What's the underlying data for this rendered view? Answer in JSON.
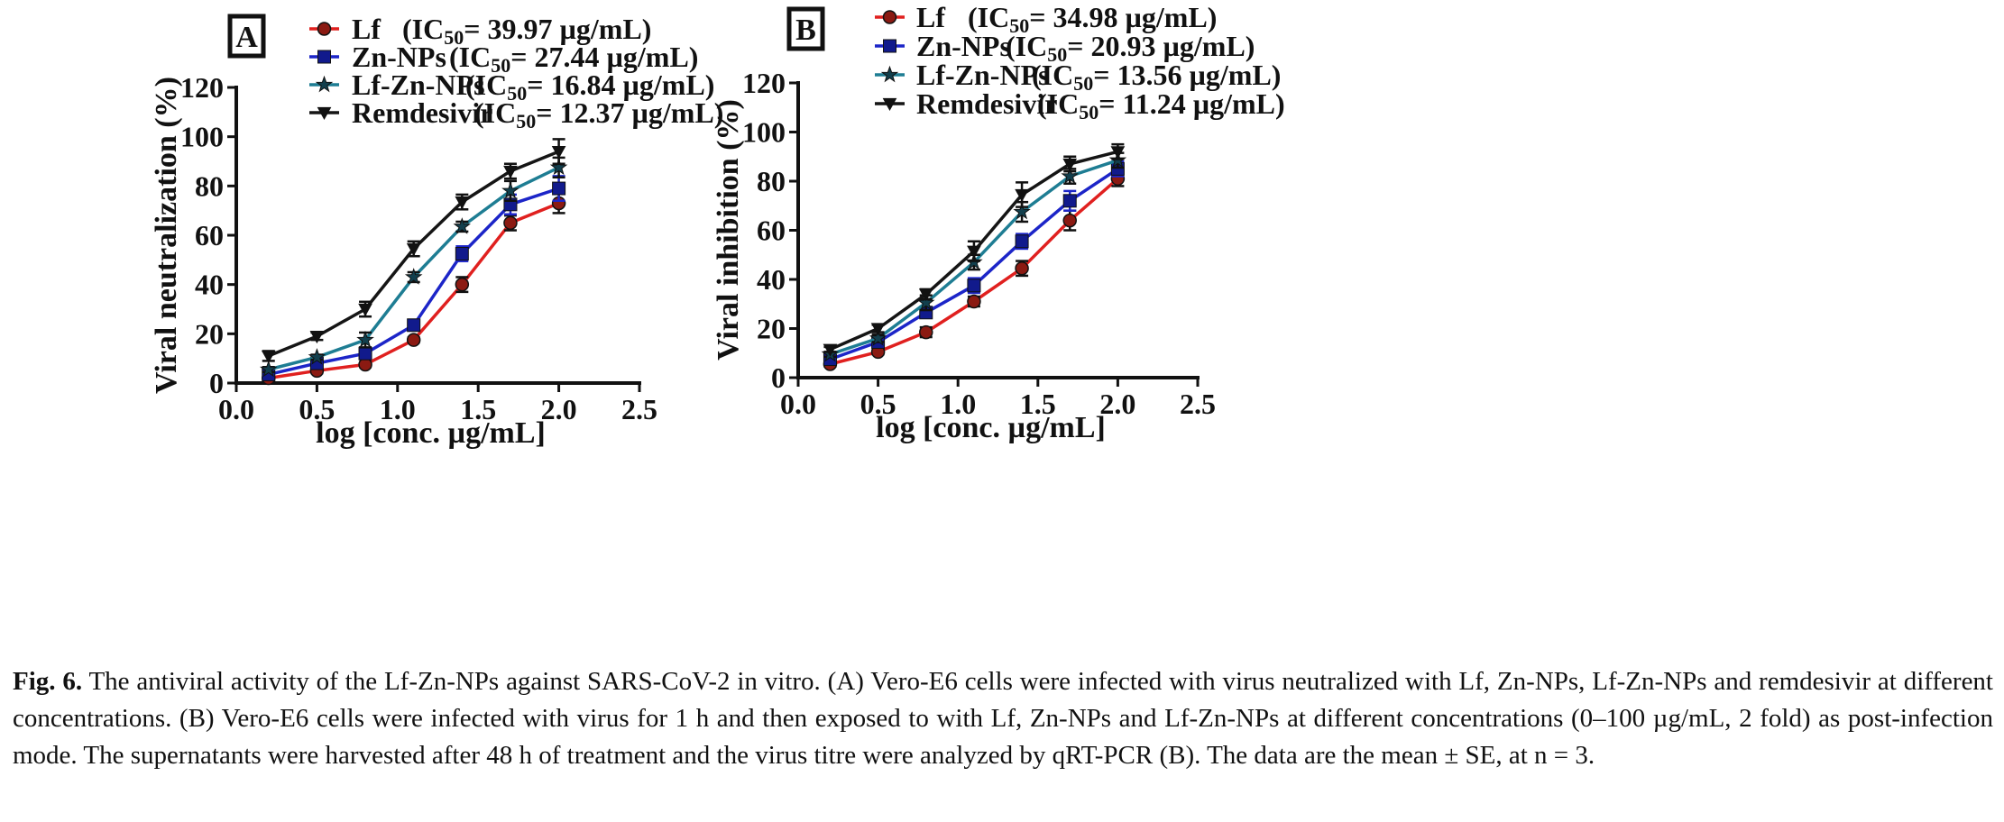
{
  "chart_data": [
    {
      "type": "line",
      "panel_label": "A",
      "xlabel": "log [conc. µg/mL]",
      "ylabel": "Viral neutralization (%)",
      "xlim": [
        0.0,
        2.5
      ],
      "ylim": [
        0,
        120
      ],
      "xticks": [
        "0.0",
        "0.5",
        "1.0",
        "1.5",
        "2.0",
        "2.5"
      ],
      "yticks": [
        "0",
        "20",
        "40",
        "60",
        "80",
        "100",
        "120"
      ],
      "grid": false,
      "legend_position": "top-right",
      "x": [
        0.2,
        0.5,
        0.8,
        1.1,
        1.4,
        1.7,
        2.0
      ],
      "series": [
        {
          "name": "Lf",
          "ic50": "(IC50= 39.97 µg/mL)",
          "color": "#e0201f",
          "marker": "circle",
          "values": [
            2,
            5,
            7.5,
            17.5,
            40,
            65,
            73
          ],
          "errors": [
            1,
            1,
            1,
            1,
            3,
            3,
            4
          ]
        },
        {
          "name": "Zn-NPs",
          "ic50": "(IC50= 27.44 µg/mL)",
          "color": "#1c25c8",
          "marker": "square",
          "values": [
            3.5,
            8,
            12,
            23.5,
            52.5,
            72.5,
            79
          ],
          "errors": [
            1,
            1,
            1,
            2,
            3,
            4,
            5
          ]
        },
        {
          "name": "Lf-Zn-NPs",
          "ic50": "(IC50= 16.84 µg/mL)",
          "color": "#1e7d93",
          "marker": "star",
          "values": [
            5.5,
            10.5,
            17.5,
            43,
            63.5,
            78,
            87.5
          ],
          "errors": [
            1,
            1,
            3,
            2,
            2,
            4,
            4
          ]
        },
        {
          "name": "Remdesivir",
          "ic50": "(IC50= 12.37 µg/mL)",
          "color": "#151515",
          "marker": "triangle-down",
          "values": [
            11,
            19,
            30,
            54.5,
            73.5,
            86,
            94
          ],
          "errors": [
            2,
            1.5,
            3,
            3,
            3,
            3,
            5
          ]
        }
      ]
    },
    {
      "type": "line",
      "panel_label": "B",
      "xlabel": "log [conc. µg/mL]",
      "ylabel": "Viral inhibition (%)",
      "xlim": [
        0.0,
        2.5
      ],
      "ylim": [
        0,
        120
      ],
      "xticks": [
        "0.0",
        "0.5",
        "1.0",
        "1.5",
        "2.0",
        "2.5"
      ],
      "yticks": [
        "0",
        "20",
        "40",
        "60",
        "80",
        "100",
        "120"
      ],
      "grid": false,
      "legend_position": "top",
      "x": [
        0.2,
        0.5,
        0.8,
        1.1,
        1.4,
        1.7,
        2.0
      ],
      "series": [
        {
          "name": "Lf",
          "ic50": "(IC50= 34.98 µg/mL)",
          "color": "#e0201f",
          "marker": "circle",
          "values": [
            5.5,
            10.5,
            18.5,
            31,
            44.5,
            64,
            81
          ],
          "errors": [
            1,
            1,
            2,
            2,
            3,
            4,
            3
          ]
        },
        {
          "name": "Zn-NPs",
          "ic50": "(IC50= 20.93 µg/mL)",
          "color": "#1c25c8",
          "marker": "square",
          "values": [
            7.5,
            14.5,
            26.5,
            37.5,
            55.5,
            72,
            85
          ],
          "errors": [
            1,
            2,
            2,
            3,
            3,
            4,
            3
          ]
        },
        {
          "name": "Lf-Zn-NPs",
          "ic50": "(IC50= 13.56 µg/mL)",
          "color": "#1e7d93",
          "marker": "star",
          "values": [
            9.5,
            16,
            30.5,
            47,
            67.5,
            82,
            88.5
          ],
          "errors": [
            1,
            1.5,
            3,
            3,
            4,
            3,
            3
          ]
        },
        {
          "name": "Remdesivir",
          "ic50": "(IC50= 11.24 µg/mL)",
          "color": "#151515",
          "marker": "triangle-down",
          "values": [
            11.5,
            20,
            34,
            51.5,
            74.5,
            87,
            92
          ],
          "errors": [
            1,
            1.5,
            2,
            4,
            5,
            3,
            3
          ]
        }
      ]
    }
  ],
  "caption": {
    "label": "Fig. 6.",
    "text": "The antiviral activity of the Lf-Zn-NPs against SARS-CoV-2 in vitro. (A) Vero-E6 cells were infected with virus neutralized with Lf, Zn-NPs, Lf-Zn-NPs and remdesivir at different concentrations. (B) Vero-E6 cells were infected with virus for 1 h and then exposed to with Lf, Zn-NPs and Lf-Zn-NPs at different concentrations (0–100 µg/mL, 2 fold) as post-infection mode. The supernatants were harvested after 48 h of treatment and the virus titre were analyzed by qRT-PCR (B). The data are the mean ± SE, at n = 3."
  }
}
